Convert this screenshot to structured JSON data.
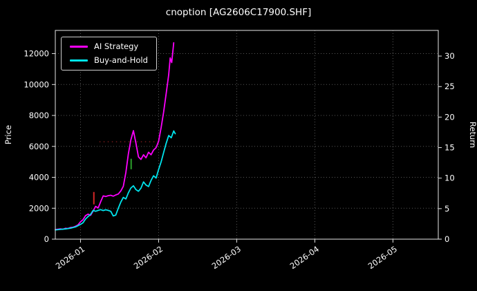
{
  "title": "cnoption [AG2606C17900.SHF]",
  "axis": {
    "left": "Price",
    "right": "Return"
  },
  "legend": [
    {
      "label": "AI Strategy",
      "color": "#ff00ff"
    },
    {
      "label": "Buy-and-Hold",
      "color": "#00e5ee"
    }
  ],
  "chart_data": {
    "type": "line",
    "title": "cnoption [AG2606C17900.SHF]",
    "ylabel_left": "Price",
    "ylabel_right": "Return",
    "grid": true,
    "legend_position": "upper left",
    "background": "#000000",
    "xlim": [
      0,
      152
    ],
    "ylim_left": [
      0,
      13500
    ],
    "ylim_right": [
      0,
      34.2
    ],
    "x_ticks": [
      {
        "day": 10,
        "label": "2026-01"
      },
      {
        "day": 41,
        "label": "2026-02"
      },
      {
        "day": 72,
        "label": "2026-03"
      },
      {
        "day": 103,
        "label": "2026-04"
      },
      {
        "day": 134,
        "label": "2026-05"
      }
    ],
    "left_ticks": [
      0,
      2000,
      4000,
      6000,
      8000,
      10000,
      12000
    ],
    "right_ticks": [
      0,
      5,
      10,
      15,
      20,
      25,
      30
    ],
    "series": [
      {
        "name": "AI Strategy",
        "color": "#ff00ff",
        "points": [
          [
            0,
            620
          ],
          [
            2,
            660
          ],
          [
            3,
            640
          ],
          [
            4,
            700
          ],
          [
            5,
            690
          ],
          [
            6,
            750
          ],
          [
            7,
            770
          ],
          [
            8,
            830
          ],
          [
            9,
            920
          ],
          [
            10,
            1120
          ],
          [
            11,
            1260
          ],
          [
            12,
            1520
          ],
          [
            13,
            1620
          ],
          [
            14,
            1540
          ],
          [
            15,
            1820
          ],
          [
            16,
            2120
          ],
          [
            17,
            2020
          ],
          [
            18,
            2420
          ],
          [
            19,
            2800
          ],
          [
            20,
            2760
          ],
          [
            21,
            2810
          ],
          [
            22,
            2840
          ],
          [
            23,
            2780
          ],
          [
            24,
            2860
          ],
          [
            25,
            2920
          ],
          [
            26,
            3120
          ],
          [
            27,
            3420
          ],
          [
            28,
            4320
          ],
          [
            29,
            5520
          ],
          [
            30,
            6420
          ],
          [
            31,
            7020
          ],
          [
            32,
            6220
          ],
          [
            33,
            5320
          ],
          [
            34,
            5160
          ],
          [
            35,
            5460
          ],
          [
            36,
            5260
          ],
          [
            37,
            5620
          ],
          [
            38,
            5460
          ],
          [
            39,
            5760
          ],
          [
            40,
            5920
          ],
          [
            41,
            6320
          ],
          [
            42,
            7220
          ],
          [
            43,
            8220
          ],
          [
            44,
            9420
          ],
          [
            45,
            10620
          ],
          [
            45.6,
            11720
          ],
          [
            46.2,
            11420
          ],
          [
            47,
            12700
          ]
        ]
      },
      {
        "name": "Buy-and-Hold",
        "color": "#00e5ee",
        "points": [
          [
            0,
            600
          ],
          [
            2,
            630
          ],
          [
            4,
            660
          ],
          [
            6,
            710
          ],
          [
            8,
            790
          ],
          [
            10,
            950
          ],
          [
            11,
            1060
          ],
          [
            12,
            1300
          ],
          [
            13,
            1460
          ],
          [
            14,
            1600
          ],
          [
            15,
            1860
          ],
          [
            16,
            1800
          ],
          [
            17,
            1860
          ],
          [
            18,
            1910
          ],
          [
            19,
            1850
          ],
          [
            20,
            1900
          ],
          [
            21,
            1860
          ],
          [
            22,
            1800
          ],
          [
            23,
            1500
          ],
          [
            24,
            1560
          ],
          [
            25,
            2000
          ],
          [
            26,
            2400
          ],
          [
            27,
            2700
          ],
          [
            28,
            2600
          ],
          [
            29,
            3000
          ],
          [
            30,
            3310
          ],
          [
            31,
            3450
          ],
          [
            32,
            3210
          ],
          [
            33,
            3100
          ],
          [
            34,
            3300
          ],
          [
            35,
            3700
          ],
          [
            36,
            3500
          ],
          [
            37,
            3400
          ],
          [
            38,
            3800
          ],
          [
            39,
            4100
          ],
          [
            40,
            3950
          ],
          [
            41,
            4500
          ],
          [
            42,
            5000
          ],
          [
            43,
            5600
          ],
          [
            44,
            6200
          ],
          [
            45,
            6700
          ],
          [
            46,
            6560
          ],
          [
            47,
            7000
          ],
          [
            47.6,
            6820
          ]
        ]
      }
    ],
    "annotations": [
      {
        "type": "vseg",
        "day": 15.3,
        "from": 2250,
        "to": 3050,
        "color": "#d62728",
        "meaning": "red-signal-mark"
      },
      {
        "type": "vseg",
        "day": 30.1,
        "from": 4520,
        "to": 5200,
        "color": "#2ca02c",
        "meaning": "green-signal-mark"
      },
      {
        "type": "hdots",
        "from_day": 17.5,
        "to_day": 41.8,
        "price": 6300,
        "color": "#7f1d1d",
        "meaning": "dotted-reference-level"
      }
    ]
  }
}
